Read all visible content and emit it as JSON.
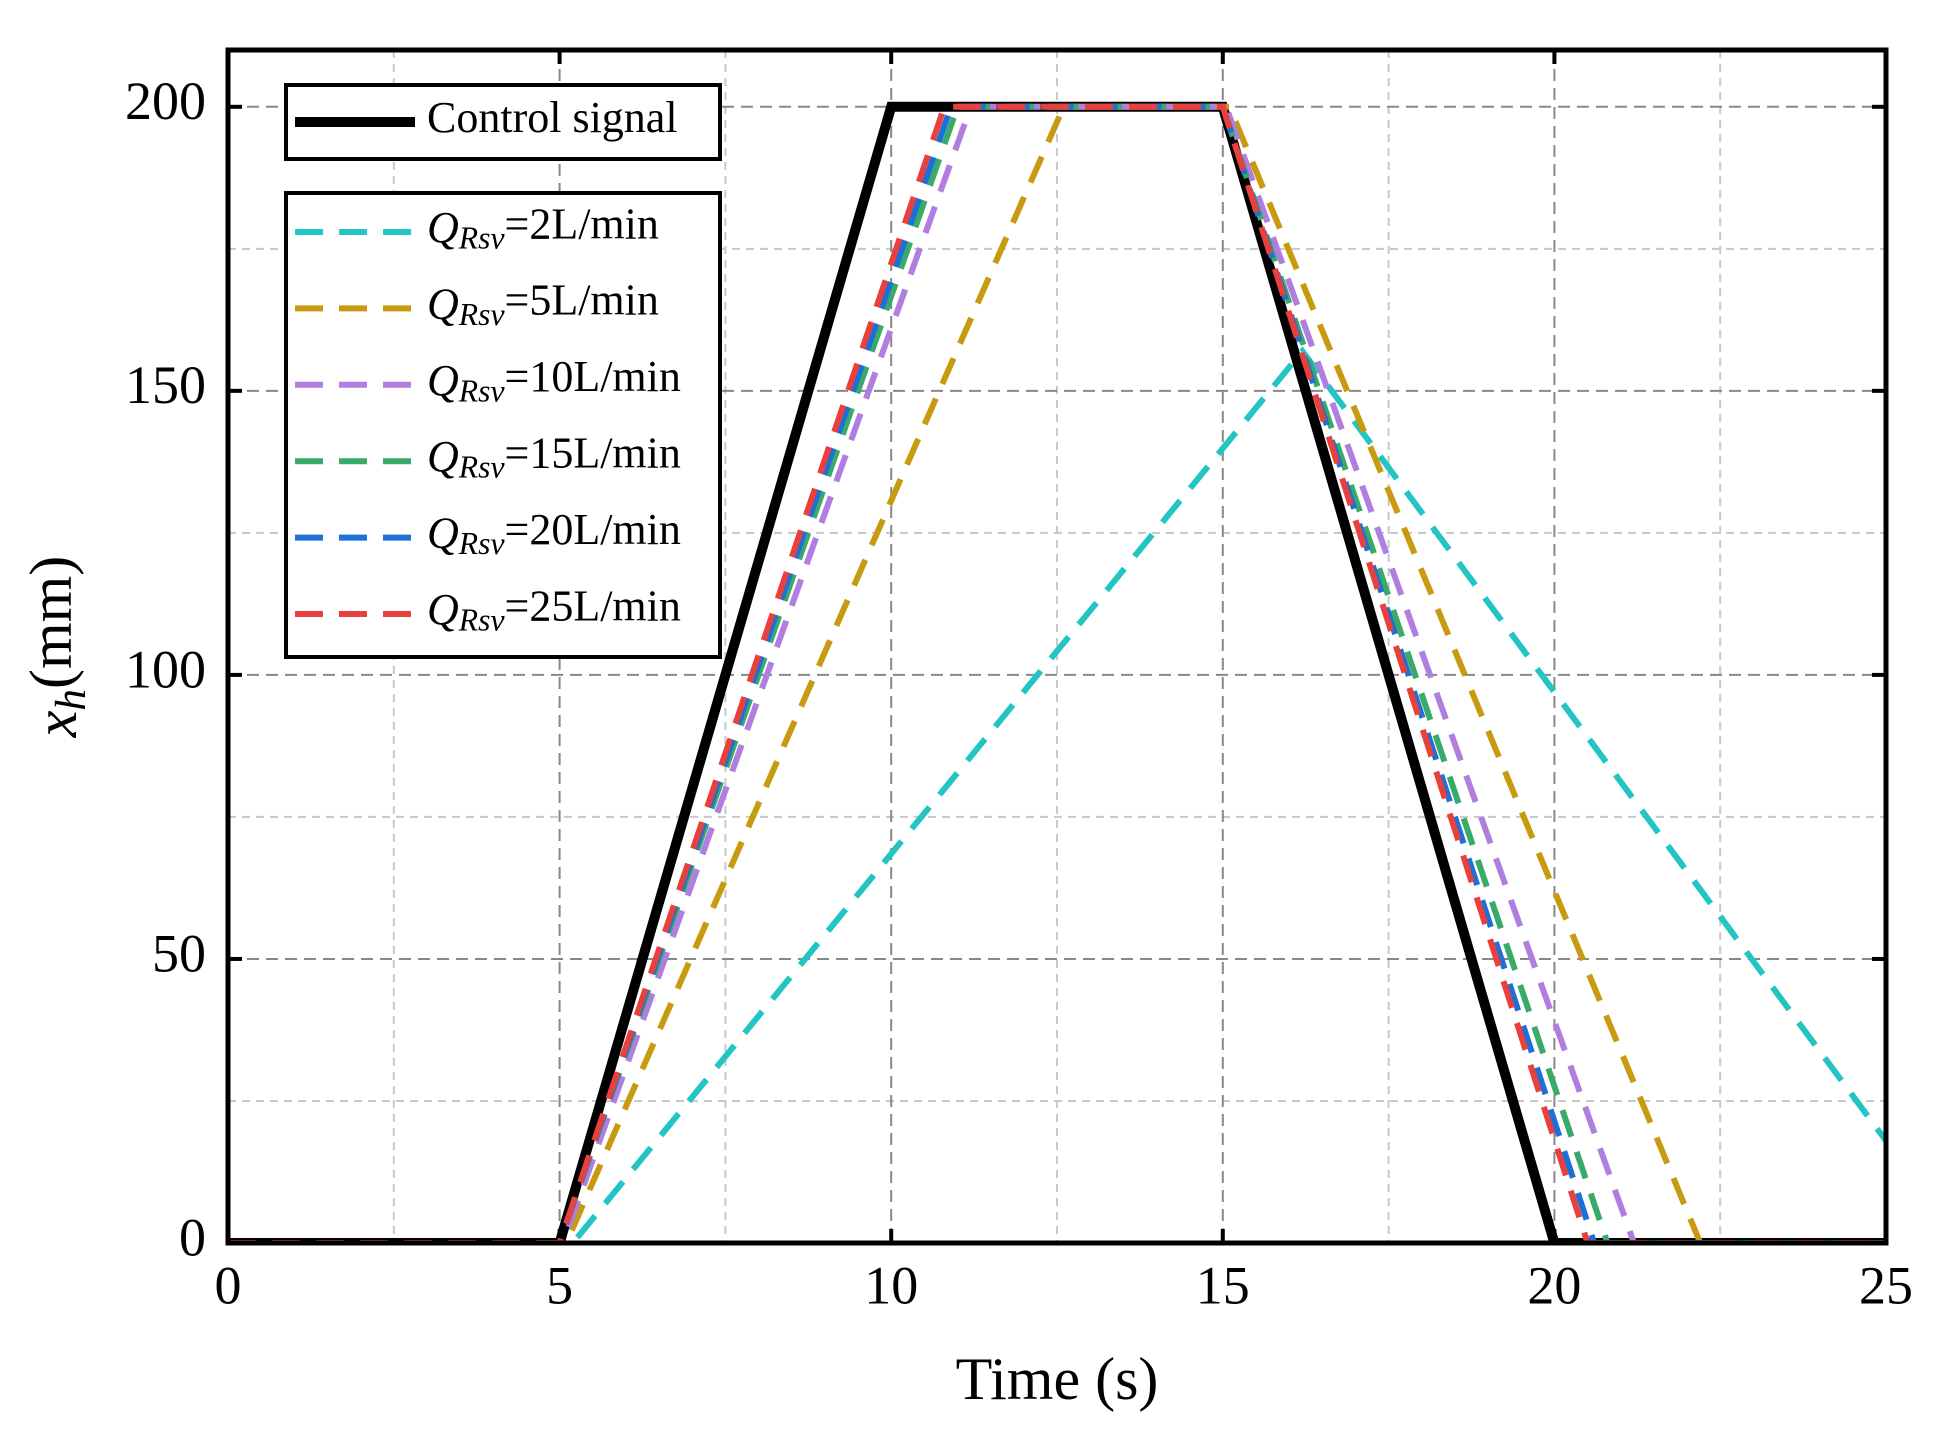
{
  "chart_data": {
    "type": "line",
    "x_label": "Time (s)",
    "y_label": "xh(mm)",
    "xlim": [
      0,
      25
    ],
    "ylim": [
      0,
      210
    ],
    "xticks": [
      0,
      5,
      10,
      15,
      20,
      25
    ],
    "yticks": [
      0,
      50,
      100,
      150,
      200
    ],
    "xminorticks": [
      2.5,
      7.5,
      12.5,
      17.5,
      22.5
    ],
    "yminorticks": [
      25,
      75,
      125,
      175
    ],
    "grid": true,
    "legend": "upper left",
    "series": [
      {
        "name": "Control signal",
        "color": "#000000",
        "style": "solid",
        "x": [
          0,
          5,
          10,
          15,
          20,
          25
        ],
        "values": [
          0,
          0,
          200,
          200,
          0,
          0
        ]
      },
      {
        "name": "QRsv=2L/min",
        "color": "#22c4c4",
        "style": "dashed",
        "x": [
          0,
          5.2,
          16.2,
          25
        ],
        "values": [
          0,
          0,
          157,
          18
        ]
      },
      {
        "name": "QRsv=5L/min",
        "color": "#c89a10",
        "style": "dashed",
        "x": [
          0,
          5.1,
          12.6,
          15.1,
          22.2,
          25
        ],
        "values": [
          0,
          0,
          200,
          200,
          0,
          0
        ]
      },
      {
        "name": "QRsv=10L/min",
        "color": "#b07ede",
        "style": "dashed",
        "x": [
          0,
          5.05,
          11.2,
          15.05,
          21.2,
          25
        ],
        "values": [
          0,
          0,
          200,
          200,
          0,
          0
        ]
      },
      {
        "name": "QRsv=15L/min",
        "color": "#3aaa6a",
        "style": "dashed",
        "x": [
          0,
          5.0,
          11.0,
          15.0,
          20.8,
          25
        ],
        "values": [
          0,
          0,
          200,
          200,
          0,
          0
        ]
      },
      {
        "name": "QRsv=20L/min",
        "color": "#1f6fd8",
        "style": "dashed",
        "x": [
          0,
          5.0,
          10.9,
          15.0,
          20.6,
          25
        ],
        "values": [
          0,
          0,
          200,
          200,
          0,
          0
        ]
      },
      {
        "name": "QRsv=25L/min",
        "color": "#e8403c",
        "style": "dashed",
        "x": [
          0,
          5.0,
          10.8,
          15.0,
          20.5,
          25
        ],
        "values": [
          0,
          0,
          200,
          200,
          0,
          0
        ]
      }
    ]
  }
}
